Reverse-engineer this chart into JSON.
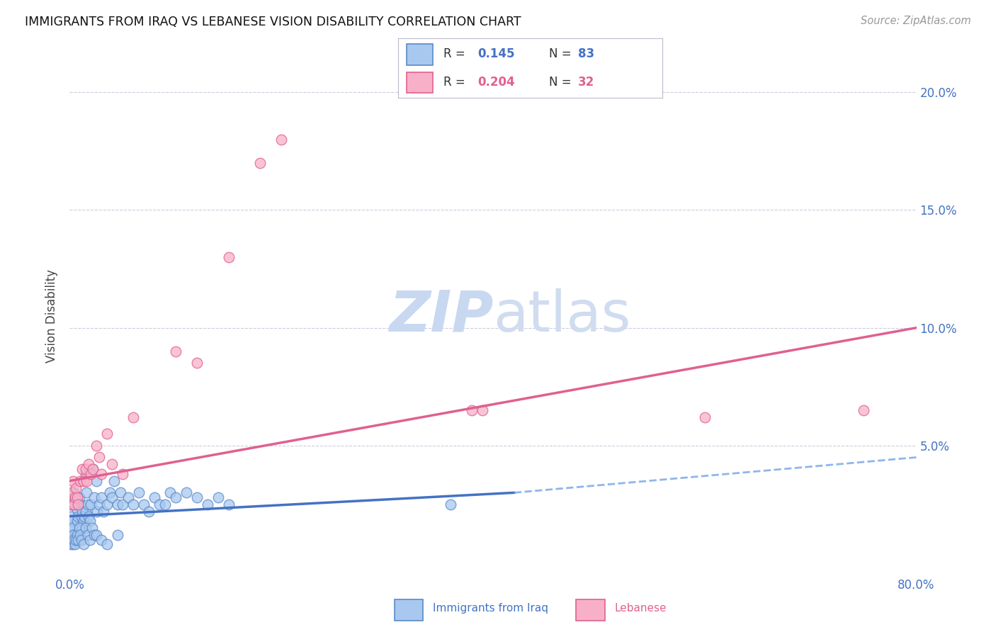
{
  "title": "IMMIGRANTS FROM IRAQ VS LEBANESE VISION DISABILITY CORRELATION CHART",
  "source": "Source: ZipAtlas.com",
  "ylabel_label": "Vision Disability",
  "xlim": [
    0.0,
    0.8
  ],
  "ylim": [
    -0.005,
    0.215
  ],
  "x_tick_positions": [
    0.0,
    0.1,
    0.2,
    0.3,
    0.4,
    0.5,
    0.6,
    0.7,
    0.8
  ],
  "x_tick_labels": [
    "0.0%",
    "",
    "",
    "",
    "",
    "",
    "",
    "",
    "80.0%"
  ],
  "y_tick_positions": [
    0.0,
    0.05,
    0.1,
    0.15,
    0.2
  ],
  "y_tick_labels": [
    "",
    "5.0%",
    "10.0%",
    "15.0%",
    "20.0%"
  ],
  "iraq_color": "#A8C8F0",
  "lebanese_color": "#F8B0C8",
  "iraq_edge_color": "#5A8AC6",
  "lebanese_edge_color": "#E06090",
  "trendline_iraq_solid_color": "#4472C4",
  "trendline_iraq_dashed_color": "#7AAAE8",
  "trendline_lebanese_color": "#E06090",
  "background_color": "#FFFFFF",
  "grid_color": "#CCCCDD",
  "watermark_color": "#C8D8F0",
  "iraq_x": [
    0.001,
    0.001,
    0.001,
    0.002,
    0.002,
    0.003,
    0.003,
    0.004,
    0.004,
    0.005,
    0.005,
    0.006,
    0.006,
    0.007,
    0.007,
    0.008,
    0.009,
    0.01,
    0.01,
    0.011,
    0.012,
    0.012,
    0.013,
    0.014,
    0.015,
    0.015,
    0.016,
    0.017,
    0.018,
    0.019,
    0.02,
    0.022,
    0.023,
    0.025,
    0.026,
    0.028,
    0.03,
    0.032,
    0.035,
    0.038,
    0.04,
    0.042,
    0.045,
    0.048,
    0.05,
    0.055,
    0.06,
    0.065,
    0.07,
    0.075,
    0.08,
    0.085,
    0.09,
    0.095,
    0.1,
    0.11,
    0.12,
    0.13,
    0.14,
    0.15,
    0.001,
    0.002,
    0.003,
    0.003,
    0.004,
    0.005,
    0.006,
    0.007,
    0.008,
    0.009,
    0.01,
    0.011,
    0.013,
    0.015,
    0.017,
    0.019,
    0.021,
    0.023,
    0.025,
    0.03,
    0.035,
    0.045,
    0.36
  ],
  "iraq_y": [
    0.025,
    0.02,
    0.015,
    0.028,
    0.018,
    0.025,
    0.015,
    0.03,
    0.012,
    0.027,
    0.01,
    0.025,
    0.012,
    0.023,
    0.018,
    0.02,
    0.028,
    0.025,
    0.015,
    0.02,
    0.022,
    0.015,
    0.018,
    0.02,
    0.038,
    0.022,
    0.03,
    0.025,
    0.02,
    0.018,
    0.025,
    0.04,
    0.028,
    0.035,
    0.022,
    0.025,
    0.028,
    0.022,
    0.025,
    0.03,
    0.028,
    0.035,
    0.025,
    0.03,
    0.025,
    0.028,
    0.025,
    0.03,
    0.025,
    0.022,
    0.028,
    0.025,
    0.025,
    0.03,
    0.028,
    0.03,
    0.028,
    0.025,
    0.028,
    0.025,
    0.008,
    0.01,
    0.008,
    0.012,
    0.01,
    0.008,
    0.01,
    0.012,
    0.01,
    0.015,
    0.012,
    0.01,
    0.008,
    0.015,
    0.012,
    0.01,
    0.015,
    0.012,
    0.012,
    0.01,
    0.008,
    0.012,
    0.025
  ],
  "leb_x": [
    0.001,
    0.002,
    0.003,
    0.004,
    0.005,
    0.006,
    0.007,
    0.008,
    0.01,
    0.012,
    0.013,
    0.015,
    0.016,
    0.018,
    0.02,
    0.022,
    0.025,
    0.028,
    0.03,
    0.035,
    0.04,
    0.05,
    0.06,
    0.1,
    0.12,
    0.15,
    0.18,
    0.2,
    0.38,
    0.39,
    0.6,
    0.75
  ],
  "leb_y": [
    0.025,
    0.03,
    0.035,
    0.025,
    0.028,
    0.032,
    0.028,
    0.025,
    0.035,
    0.04,
    0.035,
    0.04,
    0.035,
    0.042,
    0.038,
    0.04,
    0.05,
    0.045,
    0.038,
    0.055,
    0.042,
    0.038,
    0.062,
    0.09,
    0.085,
    0.13,
    0.17,
    0.18,
    0.065,
    0.065,
    0.062,
    0.065
  ],
  "iraq_trend_x0": 0.0,
  "iraq_trend_y0": 0.02,
  "iraq_trend_x1": 0.42,
  "iraq_trend_y1": 0.03,
  "iraq_trend_dashed_x0": 0.42,
  "iraq_trend_dashed_y0": 0.03,
  "iraq_trend_dashed_x1": 0.8,
  "iraq_trend_dashed_y1": 0.045,
  "leb_trend_x0": 0.0,
  "leb_trend_y0": 0.035,
  "leb_trend_x1": 0.8,
  "leb_trend_y1": 0.1
}
